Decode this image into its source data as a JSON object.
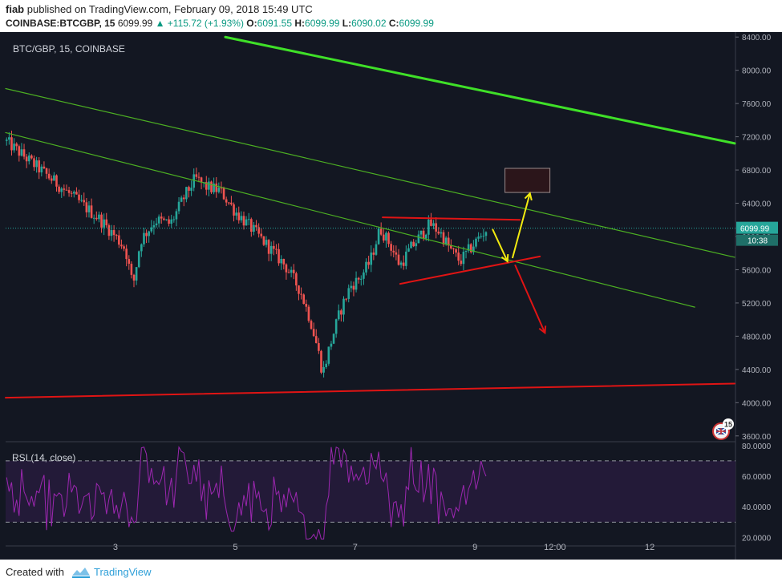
{
  "header": {
    "user": "fiab",
    "published_text": "published on TradingView.com, February 09, 2018 15:49 UTC",
    "symbol": "COINBASE:BTCGBP, 15",
    "price": "6099.99",
    "change": "▲ +115.72 (+1.93%)",
    "o_label": "O:",
    "o_value": "6091.55",
    "h_label": "H:",
    "h_value": "6099.99",
    "l_label": "L:",
    "l_value": "6090.02",
    "c_label": "C:",
    "c_value": "6099.99"
  },
  "chart_data": {
    "type": "candlestick",
    "title": "BTC/GBP, 15, COINBASE",
    "x_ticks": [
      "3",
      "5",
      "7",
      "9",
      "12:00",
      "12"
    ],
    "y_ticks": [
      "8400.00",
      "8000.00",
      "7600.00",
      "7200.00",
      "6800.00",
      "6400.00",
      "6000.00",
      "5600.00",
      "5200.00",
      "4800.00",
      "4400.00",
      "4000.00",
      "3600.00"
    ],
    "ylim": [
      3600,
      8400
    ],
    "last_price_label": "6099.99",
    "countdown_label": "10:38",
    "price_path": [
      [
        0.0,
        7150
      ],
      [
        0.5,
        6900
      ],
      [
        1.0,
        6650
      ],
      [
        1.3,
        6500
      ],
      [
        1.6,
        6350
      ],
      [
        1.9,
        6200
      ],
      [
        2.2,
        6000
      ],
      [
        2.4,
        5850
      ],
      [
        2.55,
        5400
      ],
      [
        2.7,
        5950
      ],
      [
        3.0,
        6200
      ],
      [
        3.3,
        6150
      ],
      [
        3.6,
        6500
      ],
      [
        3.8,
        6700
      ],
      [
        4.0,
        6600
      ],
      [
        4.3,
        6550
      ],
      [
        4.6,
        6300
      ],
      [
        5.0,
        6050
      ],
      [
        5.3,
        5850
      ],
      [
        5.6,
        5650
      ],
      [
        5.9,
        5350
      ],
      [
        6.1,
        5000
      ],
      [
        6.25,
        4650
      ],
      [
        6.35,
        4350
      ],
      [
        6.5,
        4700
      ],
      [
        6.7,
        5100
      ],
      [
        6.9,
        5400
      ],
      [
        7.1,
        5500
      ],
      [
        7.3,
        5700
      ],
      [
        7.5,
        6100
      ],
      [
        7.7,
        5900
      ],
      [
        7.9,
        5650
      ],
      [
        8.1,
        5850
      ],
      [
        8.3,
        6000
      ],
      [
        8.5,
        6150
      ],
      [
        8.7,
        6050
      ],
      [
        8.9,
        5850
      ],
      [
        9.1,
        5700
      ],
      [
        9.3,
        5850
      ],
      [
        9.5,
        6000
      ],
      [
        9.65,
        6100
      ]
    ],
    "rsi": {
      "label": "RSI (14, close)",
      "y_ticks": [
        "80.0000",
        "60.0000",
        "40.0000",
        "20.0000"
      ],
      "ylim": [
        15,
        82
      ],
      "upper_band": 70,
      "lower_band": 30
    },
    "drawings": {
      "green_channel_upper": [
        [
          0.0,
          7780
        ],
        [
          14.6,
          5750
        ]
      ],
      "green_channel_lower": [
        [
          0.0,
          7250
        ],
        [
          13.8,
          5150
        ]
      ],
      "green_trend_thick": [
        [
          4.4,
          8400
        ],
        [
          14.6,
          7120
        ]
      ],
      "red_support": [
        [
          0.0,
          4060
        ],
        [
          14.6,
          4230
        ]
      ],
      "triangle_top": [
        [
          7.55,
          6230
        ],
        [
          10.3,
          6200
        ]
      ],
      "triangle_bottom": [
        [
          7.9,
          5430
        ],
        [
          10.7,
          5760
        ]
      ],
      "yellow_arrow_down": [
        [
          9.75,
          6090
        ],
        [
          10.05,
          5700
        ]
      ],
      "yellow_arrow_up": [
        [
          10.15,
          5740
        ],
        [
          10.5,
          6520
        ]
      ],
      "red_arrow_down": [
        [
          10.2,
          5660
        ],
        [
          10.8,
          4840
        ]
      ],
      "target_box": {
        "x0": 10.0,
        "x1": 10.9,
        "y0": 6530,
        "y1": 6820
      }
    }
  },
  "footer": {
    "created_with": "Created with",
    "brand": "TradingView"
  },
  "colors": {
    "background": "#131722",
    "candle_up": "#26a69a",
    "candle_down": "#ef5350",
    "green_line": "#4caf22",
    "green_thick": "#3fe028",
    "red_line": "#e01414",
    "yellow": "#f2ea10",
    "rsi_line": "#9c27b0",
    "rsi_fill": "#231a38"
  }
}
